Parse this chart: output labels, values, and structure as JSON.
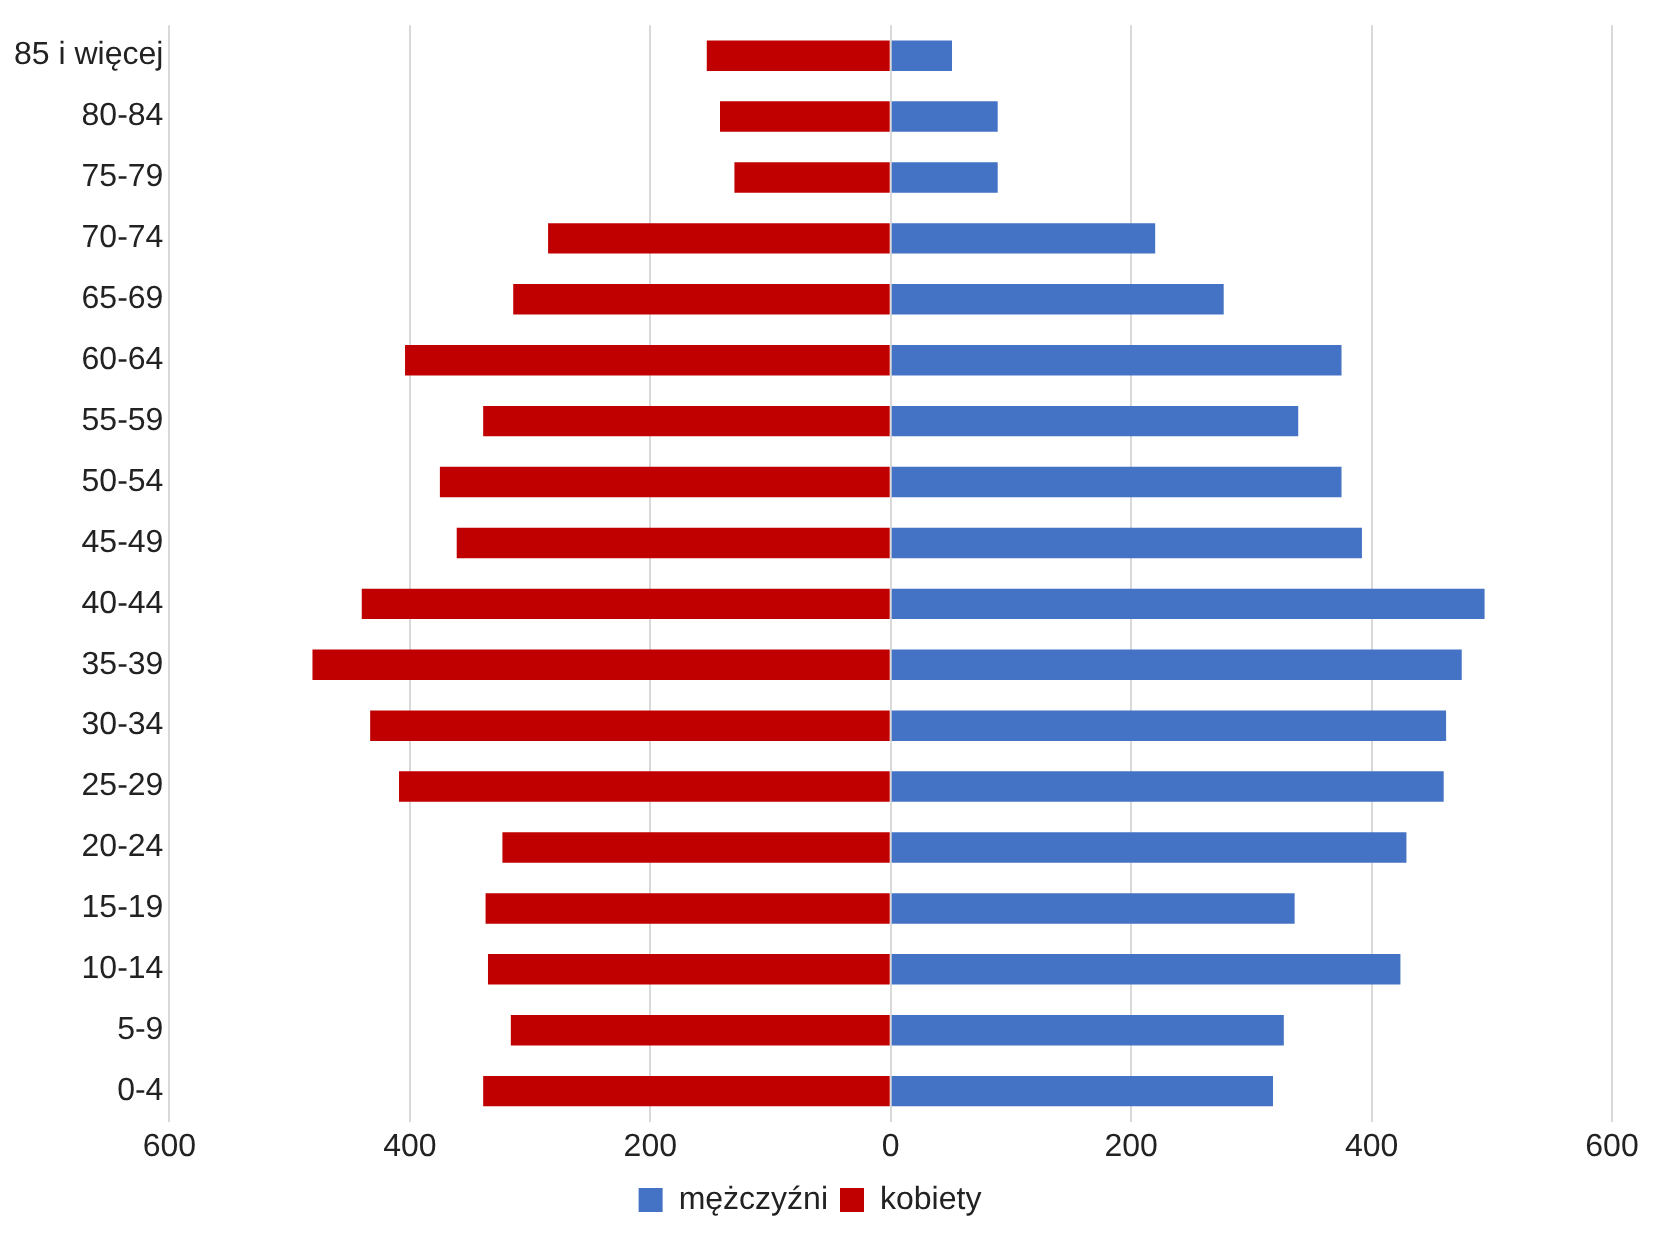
{
  "chart_data": {
    "type": "bar",
    "orientation": "horizontal",
    "stacked": true,
    "categories": [
      "85 i więcej",
      "80-84",
      "75-79",
      "70-74",
      "65-69",
      "60-64",
      "55-59",
      "50-54",
      "45-49",
      "40-44",
      "35-39",
      "30-34",
      "25-29",
      "20-24",
      "15-19",
      "10-14",
      "5-9",
      "0-4"
    ],
    "series": [
      {
        "name": "mężczyźni",
        "color": "#4472c4",
        "values": [
          51,
          89,
          89,
          220,
          277,
          375,
          339,
          375,
          392,
          494,
          475,
          462,
          460,
          429,
          336,
          424,
          327,
          318
        ]
      },
      {
        "name": "kobiety",
        "color": "#c00000",
        "values": [
          -153,
          -142,
          -130,
          -285,
          -314,
          -404,
          -339,
          -375,
          -361,
          -440,
          -481,
          -433,
          -409,
          -323,
          -337,
          -335,
          -316,
          -339
        ]
      }
    ],
    "xlim": [
      -600,
      600
    ],
    "xticks": [
      {
        "value": -600,
        "label": "600"
      },
      {
        "value": -400,
        "label": "400"
      },
      {
        "value": -200,
        "label": "200"
      },
      0,
      200,
      400,
      600
    ],
    "grid": "x",
    "legend": "bottom"
  }
}
